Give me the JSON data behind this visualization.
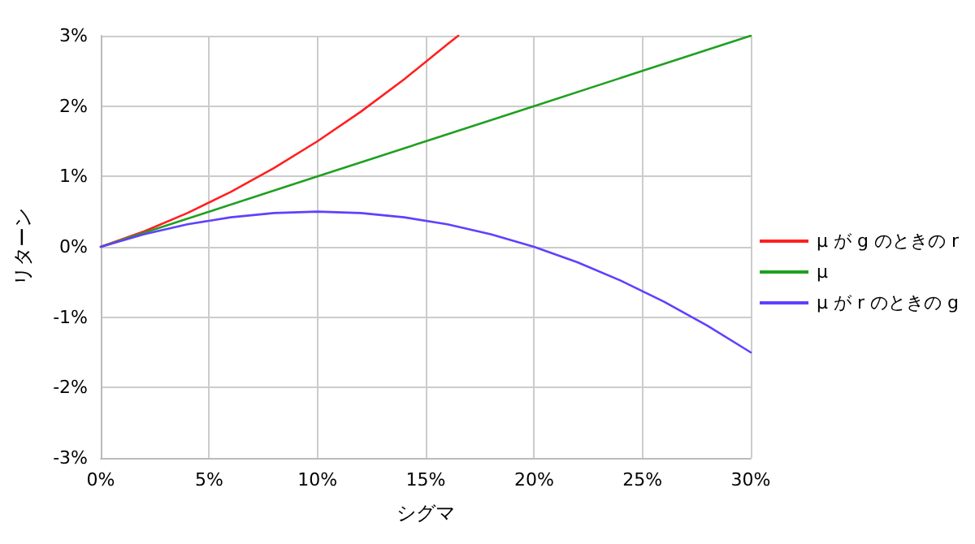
{
  "chart_data": {
    "type": "line",
    "xlabel": "シグマ",
    "ylabel": "リターン",
    "xlim": [
      0,
      30
    ],
    "xticks": [
      {
        "value": 0,
        "label": "0%"
      },
      {
        "value": 5,
        "label": "5%"
      },
      {
        "value": 10,
        "label": "10%"
      },
      {
        "value": 15,
        "label": "15%"
      },
      {
        "value": 20,
        "label": "20%"
      },
      {
        "value": 25,
        "label": "25%"
      },
      {
        "value": 30,
        "label": "30%"
      }
    ],
    "ylim": [
      -3,
      3
    ],
    "yticks": [
      {
        "value": -3,
        "label": "-3%"
      },
      {
        "value": -2,
        "label": "-2%"
      },
      {
        "value": -1,
        "label": "-1%"
      },
      {
        "value": 0,
        "label": "0%"
      },
      {
        "value": 1,
        "label": "1%"
      },
      {
        "value": 2,
        "label": "2%"
      },
      {
        "value": 3,
        "label": "3%"
      }
    ],
    "grid": true,
    "legend": "right",
    "marker": "none",
    "line_style": "solid",
    "series": [
      {
        "name": "μ が g のときの r",
        "color": "#ff2020",
        "x": [
          0,
          2,
          4,
          6,
          8,
          10,
          12,
          14,
          16,
          16.5
        ],
        "values": [
          0,
          0.22,
          0.48,
          0.78,
          1.12,
          1.5,
          1.92,
          2.38,
          2.88,
          3.0
        ]
      },
      {
        "name": "μ",
        "color": "#20a020",
        "x": [
          0,
          5,
          10,
          15,
          20,
          25,
          30
        ],
        "values": [
          0,
          0.5,
          1,
          1.5,
          2,
          2.5,
          3
        ]
      },
      {
        "name": "μ が r のときの g",
        "color": "#6040ff",
        "x": [
          0,
          2,
          4,
          6,
          8,
          10,
          12,
          14,
          16,
          18,
          20,
          22,
          24,
          26,
          28,
          30
        ],
        "values": [
          0,
          0.18,
          0.32,
          0.42,
          0.48,
          0.5,
          0.48,
          0.42,
          0.32,
          0.18,
          0,
          -0.22,
          -0.48,
          -0.78,
          -1.12,
          -1.5
        ]
      }
    ]
  }
}
